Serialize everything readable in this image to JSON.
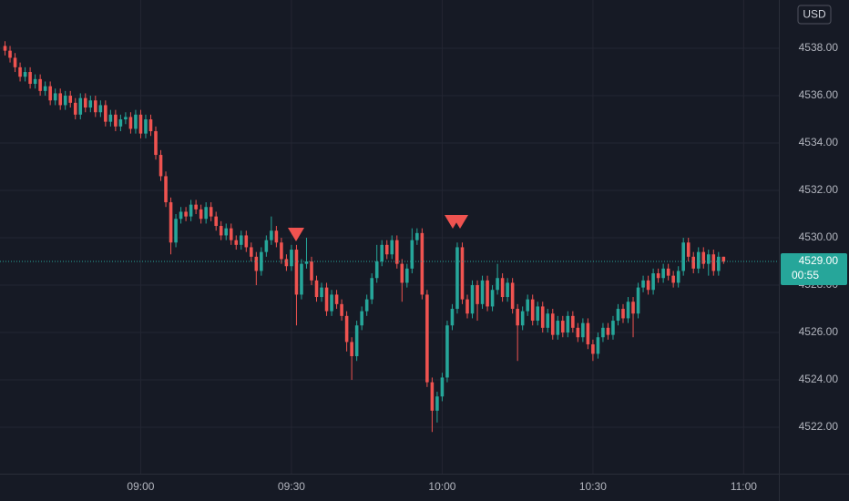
{
  "chart_data": {
    "type": "candlestick",
    "currency": "USD",
    "up_color": "#26a69a",
    "down_color": "#ef5350",
    "grid": true,
    "xlim": [
      "08:32",
      "11:07"
    ],
    "xticks": [
      "09:00",
      "09:30",
      "10:00",
      "10:30",
      "11:00"
    ],
    "ylim": [
      4520.04,
      4540.04
    ],
    "yticks": [
      {
        "value": 4522,
        "label": "4522.00"
      },
      {
        "value": 4524,
        "label": "4524.00"
      },
      {
        "value": 4526,
        "label": "4526.00"
      },
      {
        "value": 4528,
        "label": "4528.00"
      },
      {
        "value": 4530,
        "label": "4530.00"
      },
      {
        "value": 4532,
        "label": "4532.00"
      },
      {
        "value": 4534,
        "label": "4534.00"
      },
      {
        "value": 4536,
        "label": "4536.00"
      },
      {
        "value": 4538,
        "label": "4538.00"
      }
    ],
    "last_price": {
      "value": 4529,
      "label": "4529.00"
    },
    "countdown": "00:55",
    "x": [
      "08:33",
      "08:34",
      "08:35",
      "08:36",
      "08:37",
      "08:38",
      "08:39",
      "08:40",
      "08:41",
      "08:42",
      "08:43",
      "08:44",
      "08:45",
      "08:46",
      "08:47",
      "08:48",
      "08:49",
      "08:50",
      "08:51",
      "08:52",
      "08:53",
      "08:54",
      "08:55",
      "08:56",
      "08:57",
      "08:58",
      "08:59",
      "09:00",
      "09:01",
      "09:02",
      "09:03",
      "09:04",
      "09:05",
      "09:06",
      "09:07",
      "09:08",
      "09:09",
      "09:10",
      "09:11",
      "09:12",
      "09:13",
      "09:14",
      "09:15",
      "09:16",
      "09:17",
      "09:18",
      "09:19",
      "09:20",
      "09:21",
      "09:22",
      "09:23",
      "09:24",
      "09:25",
      "09:26",
      "09:27",
      "09:28",
      "09:29",
      "09:30",
      "09:31",
      "09:32",
      "09:33",
      "09:34",
      "09:35",
      "09:36",
      "09:37",
      "09:38",
      "09:39",
      "09:40",
      "09:41",
      "09:42",
      "09:43",
      "09:44",
      "09:45",
      "09:46",
      "09:47",
      "09:48",
      "09:49",
      "09:50",
      "09:51",
      "09:52",
      "09:53",
      "09:54",
      "09:55",
      "09:56",
      "09:57",
      "09:58",
      "09:59",
      "10:00",
      "10:01",
      "10:02",
      "10:03",
      "10:04",
      "10:05",
      "10:06",
      "10:07",
      "10:08",
      "10:09",
      "10:10",
      "10:11",
      "10:12",
      "10:13",
      "10:14",
      "10:15",
      "10:16",
      "10:17",
      "10:18",
      "10:19",
      "10:20",
      "10:21",
      "10:22",
      "10:23",
      "10:24",
      "10:25",
      "10:26",
      "10:27",
      "10:28",
      "10:29",
      "10:30",
      "10:31",
      "10:32",
      "10:33",
      "10:34",
      "10:35",
      "10:36",
      "10:37",
      "10:38",
      "10:39",
      "10:40",
      "10:41",
      "10:42",
      "10:43",
      "10:44",
      "10:45",
      "10:46",
      "10:47",
      "10:48",
      "10:49",
      "10:50",
      "10:51",
      "10:52",
      "10:53",
      "10:54",
      "10:55",
      "10:56"
    ],
    "open": [
      4538.1,
      4537.9,
      4537.6,
      4537.2,
      4536.8,
      4537.0,
      4536.5,
      4536.7,
      4536.2,
      4536.4,
      4535.8,
      4536.1,
      4535.6,
      4536.0,
      4535.7,
      4535.2,
      4535.9,
      4535.5,
      4535.8,
      4535.3,
      4535.6,
      4534.9,
      4535.2,
      4534.7,
      4535.0,
      4535.1,
      4534.6,
      4535.2,
      4534.4,
      4535.0,
      4534.5,
      4533.5,
      4532.6,
      4531.5,
      4529.8,
      4530.8,
      4531.1,
      4530.9,
      4531.4,
      4531.2,
      4530.8,
      4531.3,
      4530.9,
      4530.5,
      4530.1,
      4530.4,
      4529.9,
      4529.7,
      4530.1,
      4529.6,
      4529.2,
      4528.6,
      4529.4,
      4529.9,
      4530.3,
      4529.8,
      4529.1,
      4528.8,
      4529.5,
      4527.6,
      4528.9,
      4529.0,
      4528.2,
      4527.5,
      4527.9,
      4526.9,
      4527.6,
      4527.2,
      4526.7,
      4525.6,
      4525.0,
      4526.3,
      4526.9,
      4527.4,
      4528.3,
      4529.0,
      4529.7,
      4529.3,
      4529.9,
      4528.9,
      4528.1,
      4528.7,
      4529.9,
      4530.2,
      4527.6,
      4523.9,
      4522.7,
      4523.3,
      4524.1,
      4526.3,
      4527.0,
      4529.6,
      4527.4,
      4526.8,
      4528.0,
      4527.2,
      4528.2,
      4527.1,
      4527.8,
      4528.3,
      4527.5,
      4528.1,
      4527.0,
      4526.3,
      4526.9,
      4527.4,
      4526.5,
      4527.1,
      4526.2,
      4526.8,
      4525.9,
      4526.5,
      4526.0,
      4526.7,
      4526.2,
      4525.8,
      4526.4,
      4525.5,
      4525.1,
      4525.8,
      4526.2,
      4525.9,
      4526.5,
      4527.0,
      4526.6,
      4527.3,
      4526.8,
      4527.9,
      4528.2,
      4527.8,
      4528.5,
      4528.3,
      4528.7,
      4528.4,
      4528.1,
      4528.6,
      4529.8,
      4529.2,
      4528.7,
      4529.4,
      4528.9,
      4529.3,
      4528.6,
      4529.2
    ],
    "high": [
      4538.3,
      4538.1,
      4537.8,
      4537.4,
      4537.2,
      4537.2,
      4536.9,
      4536.9,
      4536.6,
      4536.6,
      4536.3,
      4536.3,
      4536.2,
      4536.2,
      4535.9,
      4536.1,
      4536.1,
      4536.0,
      4536.0,
      4535.8,
      4535.8,
      4535.4,
      4535.4,
      4535.2,
      4535.3,
      4535.3,
      4535.4,
      4535.4,
      4535.2,
      4535.2,
      4534.7,
      4533.7,
      4532.8,
      4531.7,
      4531.0,
      4531.3,
      4531.3,
      4531.6,
      4531.6,
      4531.4,
      4531.5,
      4531.5,
      4531.1,
      4530.7,
      4530.6,
      4530.6,
      4530.1,
      4530.3,
      4530.3,
      4529.8,
      4529.4,
      4529.6,
      4530.1,
      4530.9,
      4530.5,
      4530.0,
      4529.3,
      4529.7,
      4529.7,
      4529.1,
      4530.0,
      4529.2,
      4528.4,
      4528.1,
      4528.1,
      4527.8,
      4527.8,
      4527.4,
      4526.9,
      4525.8,
      4526.5,
      4527.1,
      4527.6,
      4528.5,
      4529.7,
      4529.9,
      4529.9,
      4530.1,
      4530.1,
      4529.1,
      4528.9,
      4530.4,
      4530.4,
      4530.4,
      4527.8,
      4524.1,
      4523.5,
      4524.3,
      4526.5,
      4527.2,
      4529.8,
      4529.8,
      4527.6,
      4528.2,
      4528.2,
      4528.4,
      4528.4,
      4528.0,
      4528.9,
      4528.5,
      4528.3,
      4528.3,
      4527.2,
      4527.1,
      4527.6,
      4527.6,
      4527.3,
      4527.3,
      4527.0,
      4527.0,
      4526.7,
      4526.7,
      4526.9,
      4526.9,
      4526.4,
      4526.6,
      4526.6,
      4525.7,
      4526.0,
      4526.4,
      4526.4,
      4526.7,
      4527.2,
      4527.2,
      4527.5,
      4527.5,
      4528.1,
      4528.4,
      4528.4,
      4528.7,
      4528.7,
      4528.9,
      4528.9,
      4528.6,
      4528.8,
      4530.0,
      4530.0,
      4529.4,
      4529.6,
      4529.6,
      4529.5,
      4529.5,
      4529.4,
      4529.2
    ],
    "low": [
      4537.7,
      4537.4,
      4537.0,
      4536.6,
      4536.6,
      4536.3,
      4536.3,
      4536.0,
      4536.0,
      4535.6,
      4535.6,
      4535.4,
      4535.4,
      4535.5,
      4535.0,
      4535.0,
      4535.3,
      4535.3,
      4535.1,
      4535.1,
      4534.7,
      4534.7,
      4534.5,
      4534.5,
      4534.8,
      4534.4,
      4534.4,
      4534.2,
      4534.2,
      4534.3,
      4533.3,
      4532.4,
      4531.3,
      4529.3,
      4529.6,
      4530.6,
      4530.7,
      4530.7,
      4531.0,
      4530.6,
      4530.6,
      4530.7,
      4530.3,
      4529.9,
      4529.9,
      4529.7,
      4529.5,
      4529.5,
      4529.4,
      4529.0,
      4528.0,
      4528.4,
      4529.2,
      4529.7,
      4529.6,
      4528.9,
      4528.6,
      4528.6,
      4526.3,
      4527.4,
      4528.7,
      4528.0,
      4527.3,
      4527.3,
      4526.7,
      4526.7,
      4527.0,
      4526.5,
      4525.2,
      4524.0,
      4524.8,
      4526.1,
      4526.7,
      4527.2,
      4528.1,
      4528.8,
      4529.1,
      4529.1,
      4528.7,
      4527.3,
      4527.9,
      4528.5,
      4529.7,
      4527.4,
      4523.7,
      4521.8,
      4522.2,
      4523.1,
      4523.9,
      4526.1,
      4526.8,
      4527.2,
      4526.6,
      4526.6,
      4526.5,
      4527.0,
      4526.9,
      4526.9,
      4527.6,
      4527.3,
      4527.3,
      4526.8,
      4524.8,
      4526.1,
      4526.7,
      4526.3,
      4526.3,
      4526.0,
      4526.0,
      4525.7,
      4525.7,
      4525.8,
      4525.8,
      4526.0,
      4525.6,
      4525.6,
      4525.3,
      4524.8,
      4524.9,
      4525.6,
      4525.7,
      4525.7,
      4526.3,
      4526.4,
      4526.4,
      4525.8,
      4526.6,
      4527.7,
      4527.6,
      4527.6,
      4528.1,
      4528.1,
      4528.2,
      4527.9,
      4527.9,
      4528.4,
      4529.0,
      4528.5,
      4528.5,
      4528.7,
      4528.4,
      4528.4,
      4528.4,
      4528.9
    ],
    "close": [
      4537.9,
      4537.6,
      4537.2,
      4536.8,
      4537.0,
      4536.5,
      4536.7,
      4536.2,
      4536.4,
      4535.8,
      4536.1,
      4535.6,
      4536.0,
      4535.7,
      4535.2,
      4535.9,
      4535.5,
      4535.8,
      4535.3,
      4535.6,
      4534.9,
      4535.2,
      4534.7,
      4535.0,
      4535.1,
      4534.6,
      4535.2,
      4534.4,
      4535.0,
      4534.5,
      4533.5,
      4532.6,
      4531.5,
      4529.8,
      4530.8,
      4531.1,
      4530.9,
      4531.4,
      4531.2,
      4530.8,
      4531.3,
      4530.9,
      4530.5,
      4530.1,
      4530.4,
      4529.9,
      4529.7,
      4530.1,
      4529.6,
      4529.2,
      4528.6,
      4529.4,
      4529.9,
      4530.3,
      4529.8,
      4529.1,
      4528.8,
      4529.5,
      4527.6,
      4528.9,
      4529.0,
      4528.2,
      4527.5,
      4527.9,
      4526.9,
      4527.6,
      4527.2,
      4526.7,
      4525.6,
      4525.0,
      4526.3,
      4526.9,
      4527.4,
      4528.3,
      4529.0,
      4529.7,
      4529.3,
      4529.9,
      4528.9,
      4528.1,
      4528.7,
      4529.9,
      4530.2,
      4527.6,
      4523.9,
      4522.7,
      4523.3,
      4524.1,
      4526.3,
      4527.0,
      4529.6,
      4527.4,
      4526.8,
      4528.0,
      4527.2,
      4528.2,
      4527.1,
      4527.8,
      4528.3,
      4527.5,
      4528.1,
      4527.0,
      4526.3,
      4526.9,
      4527.4,
      4526.5,
      4527.1,
      4526.2,
      4526.8,
      4525.9,
      4526.5,
      4526.0,
      4526.7,
      4526.2,
      4525.8,
      4526.4,
      4525.5,
      4525.1,
      4525.8,
      4526.2,
      4525.9,
      4526.5,
      4527.0,
      4526.6,
      4527.3,
      4526.8,
      4527.9,
      4528.2,
      4527.8,
      4528.5,
      4528.3,
      4528.7,
      4528.4,
      4528.1,
      4528.6,
      4529.8,
      4529.2,
      4528.7,
      4529.4,
      4528.9,
      4529.3,
      4528.6,
      4529.2,
      4529.0
    ]
  }
}
